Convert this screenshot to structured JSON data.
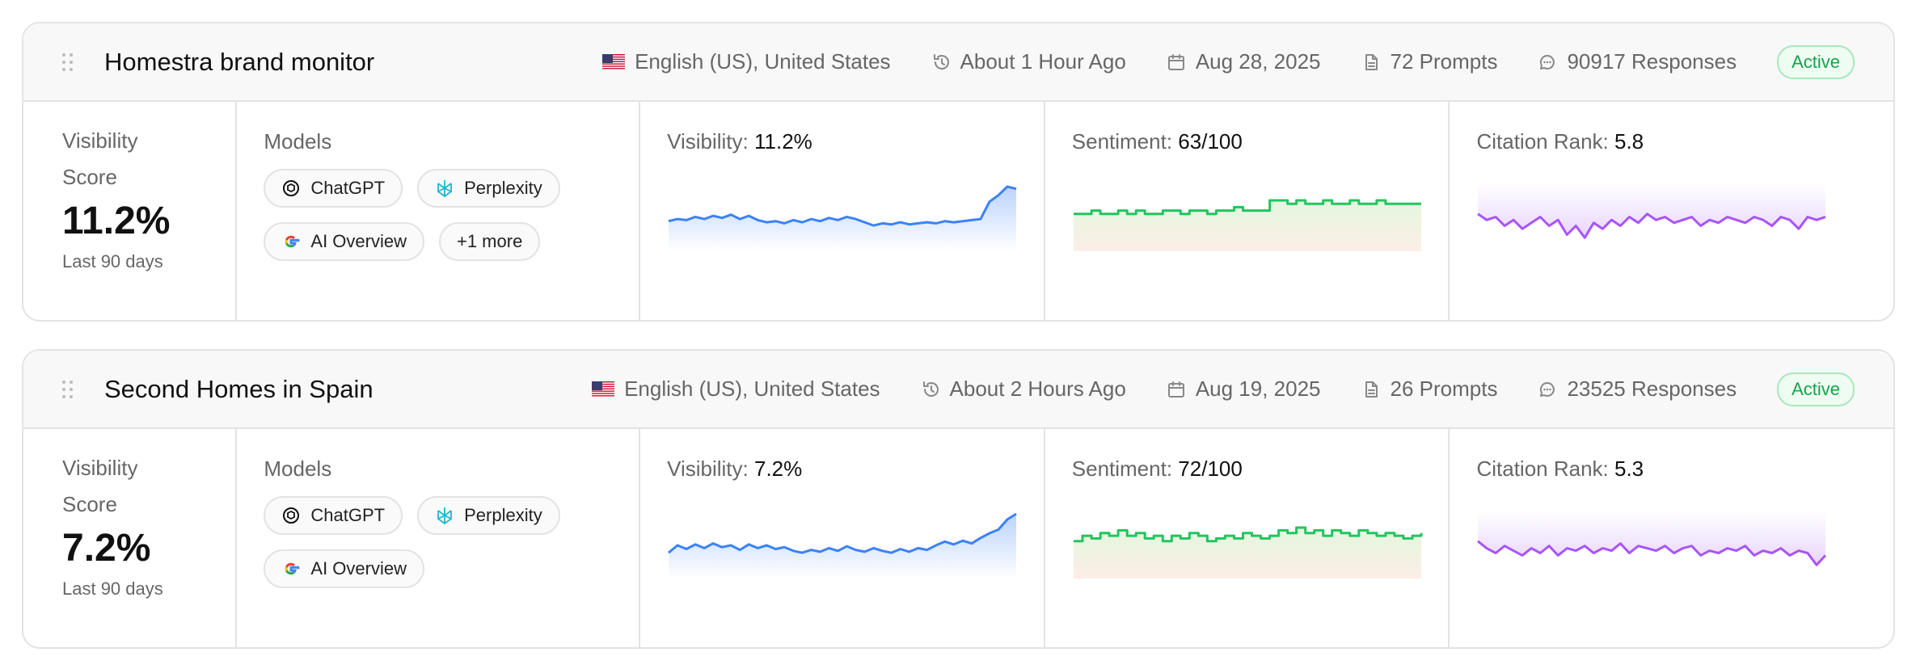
{
  "monitors": [
    {
      "title": "Homestra brand monitor",
      "locale": "English (US), United States",
      "updated": "About 1 Hour Ago",
      "date": "Aug 28, 2025",
      "prompts": "72 Prompts",
      "responses": "90917 Responses",
      "status": "Active",
      "score": {
        "label": "Visibility Score",
        "value": "11.2%",
        "period": "Last 90 days"
      },
      "models": {
        "label": "Models",
        "items": [
          "ChatGPT",
          "Perplexity",
          "AI Overview"
        ],
        "more": "+1 more"
      },
      "charts": [
        {
          "type": "line",
          "kind": "visibility",
          "label": "Visibility:",
          "value": "11.2%",
          "color": "#3b82f6",
          "values": [
            10.0,
            10.2,
            10.1,
            10.4,
            10.2,
            10.5,
            10.3,
            10.6,
            10.2,
            10.5,
            10.1,
            9.9,
            10.0,
            9.8,
            10.1,
            9.9,
            10.2,
            10.0,
            10.3,
            10.1,
            10.4,
            10.2,
            9.9,
            9.6,
            9.8,
            9.7,
            9.9,
            9.7,
            9.8,
            9.9,
            9.8,
            10.0,
            9.9,
            10.0,
            10.1,
            10.2,
            11.8,
            12.4,
            13.2,
            13.0
          ]
        },
        {
          "type": "step",
          "kind": "sentiment",
          "label": "Sentiment:",
          "value": "63/100",
          "color": "#22c55e",
          "values": [
            60,
            60,
            61,
            60,
            60,
            61,
            60,
            61,
            60,
            60,
            61,
            61,
            60,
            61,
            61,
            60,
            61,
            61,
            62,
            61,
            61,
            61,
            64,
            64,
            63,
            64,
            63,
            63,
            64,
            63,
            63,
            64,
            63,
            63,
            64,
            63,
            63,
            63,
            63,
            63
          ]
        },
        {
          "type": "line",
          "kind": "citation",
          "label": "Citation Rank:",
          "value": "5.8",
          "color": "#a855f7",
          "values": [
            6.0,
            5.8,
            5.9,
            5.6,
            5.8,
            5.5,
            5.7,
            5.9,
            5.6,
            5.8,
            5.3,
            5.6,
            5.2,
            5.7,
            5.5,
            5.8,
            5.6,
            5.9,
            5.7,
            6.0,
            5.8,
            5.9,
            5.7,
            5.8,
            5.9,
            5.6,
            5.8,
            5.7,
            5.9,
            5.8,
            5.7,
            5.9,
            5.8,
            5.6,
            5.9,
            5.8,
            5.5,
            5.9,
            5.8,
            5.9
          ]
        }
      ]
    },
    {
      "title": "Second Homes in Spain",
      "locale": "English (US), United States",
      "updated": "About 2 Hours Ago",
      "date": "Aug 19, 2025",
      "prompts": "26 Prompts",
      "responses": "23525 Responses",
      "status": "Active",
      "score": {
        "label": "Visibility Score",
        "value": "7.2%",
        "period": "Last 90 days"
      },
      "models": {
        "label": "Models",
        "items": [
          "ChatGPT",
          "Perplexity",
          "AI Overview"
        ]
      },
      "charts": [
        {
          "type": "line",
          "kind": "visibility",
          "label": "Visibility:",
          "value": "7.2%",
          "color": "#3b82f6",
          "values": [
            6.0,
            6.8,
            6.4,
            6.9,
            6.5,
            7.0,
            6.6,
            6.8,
            6.3,
            6.9,
            6.5,
            6.8,
            6.4,
            6.6,
            6.2,
            6.0,
            6.3,
            6.1,
            6.5,
            6.2,
            6.7,
            6.3,
            6.1,
            6.5,
            6.2,
            6.0,
            6.4,
            6.1,
            6.5,
            6.3,
            6.8,
            7.2,
            6.9,
            7.3,
            7.0,
            7.6,
            8.1,
            8.5,
            9.6,
            10.2
          ]
        },
        {
          "type": "step",
          "kind": "sentiment",
          "label": "Sentiment:",
          "value": "72/100",
          "color": "#22c55e",
          "values": [
            70,
            72,
            71,
            73,
            72,
            74,
            72,
            73,
            71,
            72,
            70,
            72,
            71,
            73,
            72,
            70,
            71,
            72,
            71,
            73,
            72,
            71,
            72,
            74,
            73,
            75,
            73,
            74,
            72,
            74,
            73,
            72,
            74,
            73,
            72,
            73,
            72,
            71,
            72,
            73
          ]
        },
        {
          "type": "line",
          "kind": "citation",
          "label": "Citation Rank:",
          "value": "5.3",
          "color": "#a855f7",
          "values": [
            5.8,
            5.5,
            5.3,
            5.6,
            5.4,
            5.2,
            5.5,
            5.3,
            5.6,
            5.2,
            5.5,
            5.4,
            5.6,
            5.3,
            5.5,
            5.4,
            5.7,
            5.3,
            5.6,
            5.5,
            5.4,
            5.6,
            5.3,
            5.5,
            5.6,
            5.2,
            5.4,
            5.3,
            5.5,
            5.4,
            5.6,
            5.2,
            5.4,
            5.3,
            5.5,
            5.2,
            5.4,
            5.3,
            4.8,
            5.2
          ]
        }
      ]
    }
  ]
}
